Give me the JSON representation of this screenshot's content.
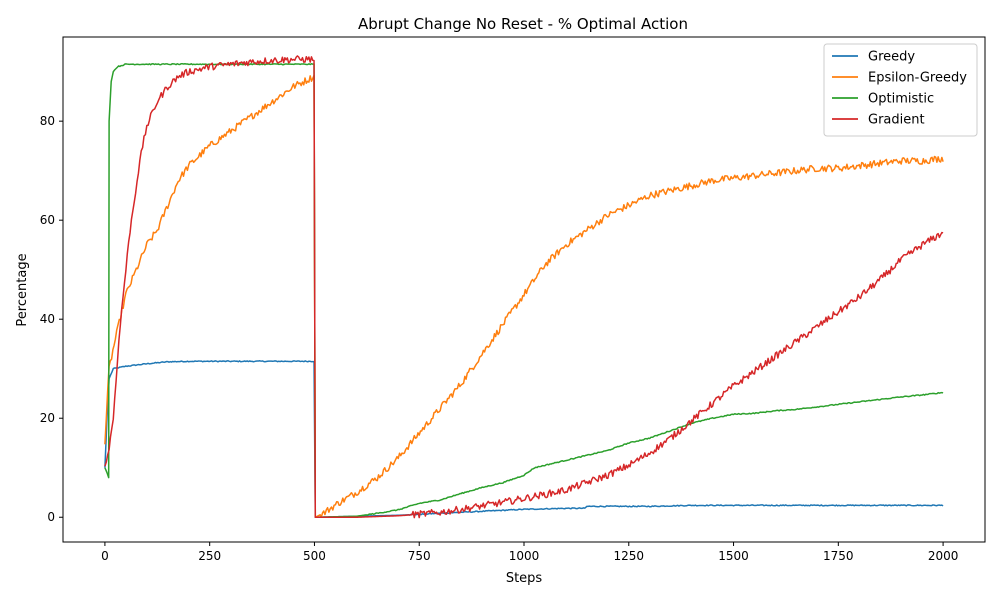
{
  "chart_data": {
    "type": "line",
    "title": "Abrupt Change No Reset - % Optimal Action",
    "xlabel": "Steps",
    "ylabel": "Percentage",
    "xlim": [
      -100,
      2100
    ],
    "ylim": [
      -5,
      97
    ],
    "xticks": [
      0,
      250,
      500,
      750,
      1000,
      1250,
      1500,
      1750,
      2000
    ],
    "yticks": [
      0,
      20,
      40,
      60,
      80
    ],
    "grid": false,
    "legend_position": "top-right",
    "series": [
      {
        "name": "Greedy",
        "color": "#1f77b4",
        "points": [
          [
            0,
            10
          ],
          [
            5,
            20
          ],
          [
            10,
            28
          ],
          [
            20,
            30
          ],
          [
            50,
            30.5
          ],
          [
            100,
            31
          ],
          [
            150,
            31.4
          ],
          [
            200,
            31.5
          ],
          [
            300,
            31.5
          ],
          [
            400,
            31.5
          ],
          [
            499,
            31.5
          ],
          [
            502,
            0
          ],
          [
            600,
            0.2
          ],
          [
            700,
            0.4
          ],
          [
            800,
            0.8
          ],
          [
            900,
            1.2
          ],
          [
            1000,
            1.6
          ],
          [
            1100,
            1.8
          ],
          [
            1145,
            1.8
          ],
          [
            1150,
            2.2
          ],
          [
            1200,
            2.2
          ],
          [
            1300,
            2.2
          ],
          [
            1400,
            2.4
          ],
          [
            1500,
            2.4
          ],
          [
            1600,
            2.4
          ],
          [
            1700,
            2.4
          ],
          [
            1800,
            2.4
          ],
          [
            1900,
            2.4
          ],
          [
            2000,
            2.4
          ]
        ]
      },
      {
        "name": "Epsilon-Greedy",
        "color": "#ff7f0e",
        "points": [
          [
            0,
            15
          ],
          [
            10,
            30
          ],
          [
            25,
            36
          ],
          [
            50,
            45
          ],
          [
            75,
            50
          ],
          [
            100,
            55
          ],
          [
            125,
            58
          ],
          [
            150,
            63
          ],
          [
            175,
            68
          ],
          [
            200,
            71
          ],
          [
            250,
            75
          ],
          [
            300,
            78
          ],
          [
            350,
            81
          ],
          [
            400,
            84
          ],
          [
            450,
            87
          ],
          [
            499,
            89
          ],
          [
            502,
            0
          ],
          [
            525,
            1
          ],
          [
            550,
            2.5
          ],
          [
            600,
            5
          ],
          [
            650,
            8
          ],
          [
            700,
            12
          ],
          [
            750,
            17
          ],
          [
            800,
            22
          ],
          [
            850,
            27
          ],
          [
            900,
            33
          ],
          [
            950,
            39
          ],
          [
            1000,
            45
          ],
          [
            1050,
            51
          ],
          [
            1100,
            55
          ],
          [
            1150,
            58
          ],
          [
            1200,
            61
          ],
          [
            1250,
            63
          ],
          [
            1300,
            65
          ],
          [
            1350,
            66
          ],
          [
            1400,
            67
          ],
          [
            1450,
            68
          ],
          [
            1500,
            68.5
          ],
          [
            1550,
            69
          ],
          [
            1600,
            69.5
          ],
          [
            1650,
            70
          ],
          [
            1700,
            70.5
          ],
          [
            1750,
            70.5
          ],
          [
            1800,
            71
          ],
          [
            1850,
            71.5
          ],
          [
            1900,
            72
          ],
          [
            1950,
            72
          ],
          [
            2000,
            72.5
          ]
        ]
      },
      {
        "name": "Optimistic",
        "color": "#2ca02c",
        "points": [
          [
            0,
            10
          ],
          [
            5,
            9
          ],
          [
            9,
            8
          ],
          [
            10,
            80
          ],
          [
            15,
            88
          ],
          [
            20,
            90
          ],
          [
            30,
            91
          ],
          [
            50,
            91.5
          ],
          [
            100,
            91.5
          ],
          [
            200,
            91.5
          ],
          [
            300,
            91.5
          ],
          [
            400,
            91.5
          ],
          [
            499,
            91.5
          ],
          [
            502,
            0
          ],
          [
            600,
            0.2
          ],
          [
            650,
            0.8
          ],
          [
            700,
            1.5
          ],
          [
            750,
            2.8
          ],
          [
            800,
            3.5
          ],
          [
            850,
            4.8
          ],
          [
            900,
            6
          ],
          [
            950,
            7
          ],
          [
            1000,
            8.5
          ],
          [
            1025,
            10
          ],
          [
            1050,
            10.5
          ],
          [
            1100,
            11.5
          ],
          [
            1150,
            12.5
          ],
          [
            1200,
            13.5
          ],
          [
            1250,
            15
          ],
          [
            1300,
            16
          ],
          [
            1350,
            17.5
          ],
          [
            1400,
            19
          ],
          [
            1450,
            20
          ],
          [
            1500,
            20.8
          ],
          [
            1550,
            21
          ],
          [
            1600,
            21.5
          ],
          [
            1650,
            21.8
          ],
          [
            1700,
            22.3
          ],
          [
            1750,
            22.8
          ],
          [
            1800,
            23.3
          ],
          [
            1850,
            23.8
          ],
          [
            1900,
            24.3
          ],
          [
            1950,
            24.7
          ],
          [
            2000,
            25.2
          ]
        ]
      },
      {
        "name": "Gradient",
        "color": "#d62728",
        "points": [
          [
            0,
            10
          ],
          [
            10,
            14
          ],
          [
            20,
            20
          ],
          [
            30,
            32
          ],
          [
            40,
            42
          ],
          [
            50,
            50
          ],
          [
            60,
            58
          ],
          [
            70,
            64
          ],
          [
            80,
            70
          ],
          [
            90,
            75
          ],
          [
            100,
            79
          ],
          [
            125,
            84
          ],
          [
            150,
            87
          ],
          [
            175,
            89
          ],
          [
            200,
            90
          ],
          [
            250,
            91
          ],
          [
            300,
            91.5
          ],
          [
            350,
            92
          ],
          [
            400,
            92.3
          ],
          [
            450,
            92.5
          ],
          [
            499,
            92.5
          ],
          [
            502,
            0
          ],
          [
            600,
            0
          ],
          [
            700,
            0.3
          ],
          [
            750,
            0.6
          ],
          [
            800,
            1
          ],
          [
            850,
            1.6
          ],
          [
            900,
            2.3
          ],
          [
            950,
            3
          ],
          [
            1000,
            3.8
          ],
          [
            1050,
            4.6
          ],
          [
            1100,
            5.5
          ],
          [
            1150,
            7
          ],
          [
            1200,
            8.5
          ],
          [
            1250,
            10.5
          ],
          [
            1300,
            13
          ],
          [
            1350,
            16
          ],
          [
            1400,
            19.5
          ],
          [
            1450,
            23
          ],
          [
            1500,
            26.5
          ],
          [
            1550,
            29.5
          ],
          [
            1600,
            32.5
          ],
          [
            1650,
            35.5
          ],
          [
            1700,
            38.5
          ],
          [
            1750,
            41.5
          ],
          [
            1800,
            44.5
          ],
          [
            1850,
            48
          ],
          [
            1900,
            52
          ],
          [
            1950,
            55
          ],
          [
            2000,
            57.5
          ]
        ]
      }
    ]
  }
}
